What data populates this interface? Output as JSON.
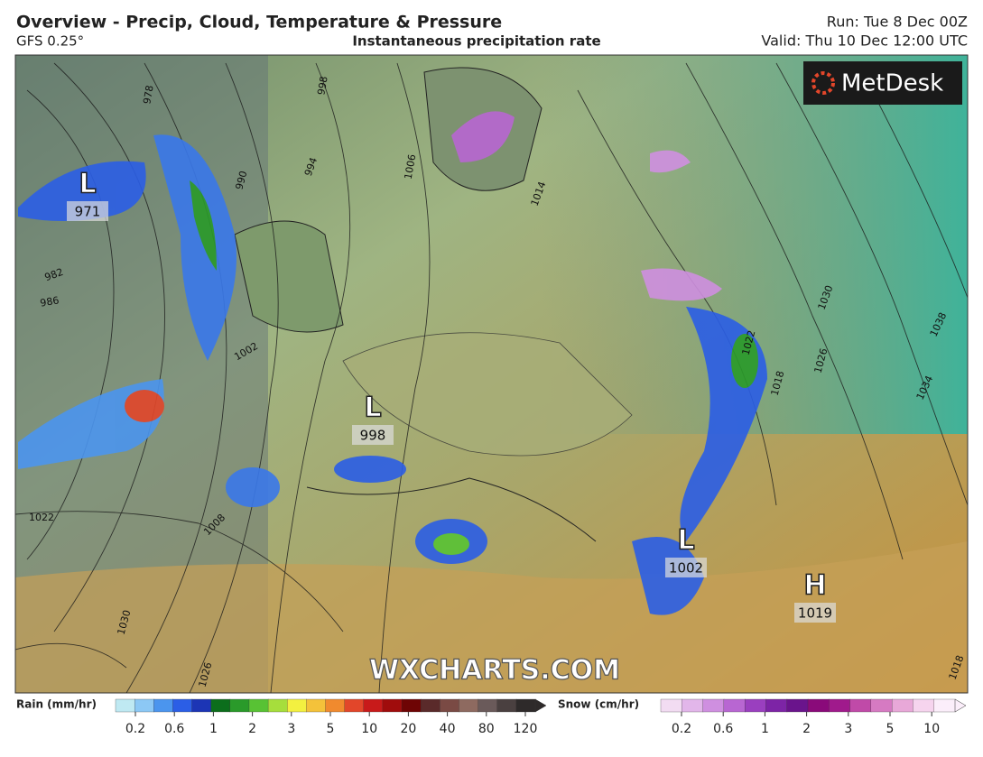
{
  "header": {
    "title": "Overview - Precip, Cloud, Temperature & Pressure",
    "model": "GFS 0.25°",
    "subtitle": "Instantaneous precipitation rate",
    "run": "Run: Tue 8 Dec 00Z",
    "valid": "Valid: Thu 10 Dec 12:00 UTC"
  },
  "map": {
    "brand": "MetDesk",
    "watermark": "WXCHARTS.COM",
    "systems": [
      {
        "kind": "L",
        "pressure": "971"
      },
      {
        "kind": "L",
        "pressure": "998"
      },
      {
        "kind": "L",
        "pressure": "1002"
      },
      {
        "kind": "H",
        "pressure": "1019"
      }
    ],
    "isobar_labels": [
      "978",
      "982",
      "986",
      "990",
      "994",
      "998",
      "1002",
      "1006",
      "1014",
      "1018",
      "1022",
      "1026",
      "1030",
      "1034",
      "1038",
      "1008",
      "1026",
      "1030",
      "1022",
      "1018"
    ]
  },
  "legend": {
    "rain": {
      "label": "Rain (mm/hr)",
      "ticks": [
        0.2,
        0.6,
        1,
        2,
        3,
        5,
        10,
        20,
        40,
        80,
        120
      ],
      "colors": [
        "#bfe9f2",
        "#8cc8f5",
        "#4b95ee",
        "#2b5ee6",
        "#1c35b5",
        "#0c6e1c",
        "#2a9a2a",
        "#58c234",
        "#a6de3c",
        "#f3f040",
        "#f4c23a",
        "#f08a2e",
        "#e2462a",
        "#c81a1a",
        "#a00c0c",
        "#6e0404",
        "#5a2a2a",
        "#7a4a44",
        "#8e6a60",
        "#6a5a5a",
        "#4a4040",
        "#2e2a2a"
      ]
    },
    "snow": {
      "label": "Snow (cm/hr)",
      "ticks": [
        0.2,
        0.6,
        1,
        2,
        3,
        5,
        10
      ],
      "colors": [
        "#f2dcf2",
        "#e2b6ea",
        "#cf8fe0",
        "#b866d2",
        "#9a3fbf",
        "#7d24a6",
        "#6a148c",
        "#8a0a7a",
        "#a01a8c",
        "#c04aa8",
        "#d67ac2",
        "#e8a8d8",
        "#f6d4ee",
        "#fbeefa"
      ]
    }
  }
}
